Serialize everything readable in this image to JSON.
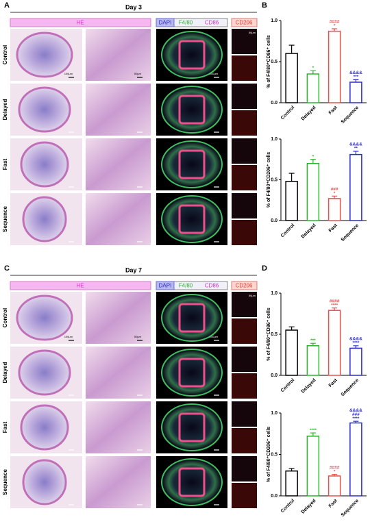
{
  "figure": {
    "panel_labels": [
      "A",
      "B",
      "C",
      "D"
    ],
    "sections": [
      {
        "title": "Day 3",
        "stains": [
          "HE",
          "DAPI",
          "F4/80",
          "CD86",
          "CD206"
        ],
        "rows": [
          "Control",
          "Delayed",
          "Fast",
          "Sequence"
        ],
        "scales": [
          "100μm",
          "50μm",
          "100μm",
          "50μm"
        ]
      },
      {
        "title": "Day 7",
        "stains": [
          "HE",
          "DAPI",
          "F4/80",
          "CD86",
          "CD206"
        ],
        "rows": [
          "Control",
          "Delayed",
          "Fast",
          "Sequence"
        ],
        "scales": [
          "100μm",
          "50μm",
          "100μm",
          "50μm"
        ]
      }
    ]
  },
  "chart_data": [
    {
      "type": "bar",
      "y_label": "% of F4/80⁺CD86⁺ cells",
      "categories": [
        "Control",
        "Delayed",
        "Fast",
        "Sequence"
      ],
      "values": [
        0.6,
        0.35,
        0.87,
        0.25
      ],
      "errors": [
        0.1,
        0.04,
        0.03,
        0.03
      ],
      "colors": [
        "#000000",
        "#2bb52b",
        "#e8504a",
        "#2a2ad0"
      ],
      "annotations": [
        [],
        [
          "*"
        ],
        [
          "####",
          "*"
        ],
        [
          "&&&&",
          "***"
        ]
      ],
      "ylim": [
        0,
        1
      ],
      "yticks": [
        {
          "value": 0,
          "label": "0.0"
        },
        0.5,
        {
          "value": 1,
          "label": "1.0"
        }
      ]
    },
    {
      "type": "bar",
      "y_label": "% of F4/80⁺CD206⁺ cells",
      "categories": [
        "Control",
        "Delayed",
        "Fast",
        "Sequence"
      ],
      "values": [
        0.48,
        0.7,
        0.27,
        0.81
      ],
      "errors": [
        0.1,
        0.05,
        0.03,
        0.04
      ],
      "colors": [
        "#000000",
        "#2bb52b",
        "#e8504a",
        "#2a2ad0"
      ],
      "annotations": [
        [],
        [
          "*"
        ],
        [
          "###",
          "*"
        ],
        [
          "&&&&",
          "**"
        ]
      ],
      "ylim": [
        0,
        1
      ],
      "yticks": [
        {
          "value": 0,
          "label": "0.0"
        },
        0.5,
        {
          "value": 1,
          "label": "1.0"
        }
      ]
    },
    {
      "type": "bar",
      "y_label": "% of F4/80⁺CD86⁺ cells",
      "categories": [
        "Control",
        "Delayed",
        "Fast",
        "Sequence"
      ],
      "values": [
        0.55,
        0.36,
        0.79,
        0.33
      ],
      "errors": [
        0.04,
        0.03,
        0.03,
        0.03
      ],
      "colors": [
        "#000000",
        "#2bb52b",
        "#e8504a",
        "#2a2ad0"
      ],
      "annotations": [
        [],
        [
          "***"
        ],
        [
          "####",
          "****"
        ],
        [
          "&&&&",
          "****"
        ]
      ],
      "ylim": [
        0,
        1
      ],
      "yticks": [
        {
          "value": 0,
          "label": "0.0"
        },
        0.5,
        {
          "value": 1,
          "label": "1.0"
        }
      ]
    },
    {
      "type": "bar",
      "y_label": "% of F4/80⁺CD206⁺ cells",
      "categories": [
        "Control",
        "Delayed",
        "Fast",
        "Sequence"
      ],
      "values": [
        0.3,
        0.72,
        0.24,
        0.88
      ],
      "errors": [
        0.03,
        0.04,
        0.02,
        0.02
      ],
      "colors": [
        "#000000",
        "#2bb52b",
        "#e8504a",
        "#2a2ad0"
      ],
      "annotations": [
        [],
        [
          "****"
        ],
        [
          "####",
          "*"
        ],
        [
          "&&&&",
          "###",
          "****"
        ]
      ],
      "ylim": [
        0,
        1
      ],
      "yticks": [
        {
          "value": 0,
          "label": "0.0"
        },
        0.5,
        {
          "value": 1,
          "label": "1.0"
        }
      ]
    }
  ]
}
